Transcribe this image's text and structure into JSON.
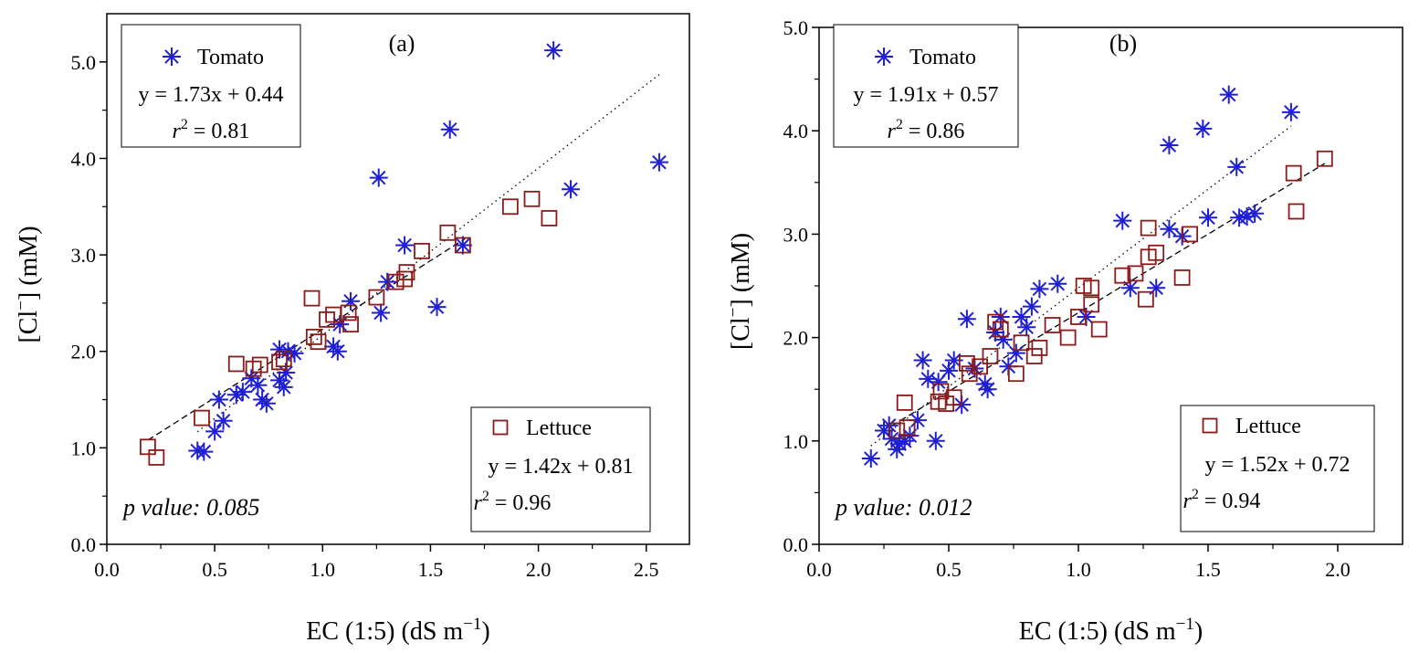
{
  "chart_data": [
    {
      "type": "scatter",
      "panel_label": "(a)",
      "xlabel": "EC (1:5) (dS m",
      "xlabel_sup": "−1",
      "xlabel_end": ")",
      "ylabel": "[Cl",
      "ylabel_sup": "−",
      "ylabel_end": "] (mM)",
      "xlim": [
        0,
        2.7
      ],
      "ylim": [
        0,
        5.5
      ],
      "xticks": [
        0.0,
        0.5,
        1.0,
        1.5,
        2.0,
        2.5
      ],
      "yticks": [
        0.0,
        1.0,
        2.0,
        3.0,
        4.0,
        5.0
      ],
      "p_value": "p value: 0.085",
      "series": [
        {
          "name": "Tomato",
          "marker": "asterisk",
          "color": "#1f1fd6",
          "equation": "y = 1.73x + 0.44",
          "r2_label": "r",
          "r2_value": " = 0.81",
          "fit": {
            "slope": 1.73,
            "intercept": 0.44,
            "x_range": [
              0.42,
              2.56
            ],
            "style": "dotted"
          },
          "points": [
            [
              0.42,
              0.97
            ],
            [
              0.45,
              0.96
            ],
            [
              0.5,
              1.17
            ],
            [
              0.52,
              1.5
            ],
            [
              0.54,
              1.28
            ],
            [
              0.6,
              1.55
            ],
            [
              0.63,
              1.58
            ],
            [
              0.67,
              1.72
            ],
            [
              0.7,
              1.65
            ],
            [
              0.72,
              1.5
            ],
            [
              0.74,
              1.46
            ],
            [
              0.8,
              2.02
            ],
            [
              0.8,
              1.7
            ],
            [
              0.82,
              1.63
            ],
            [
              0.83,
              1.78
            ],
            [
              0.84,
              2.0
            ],
            [
              0.87,
              1.98
            ],
            [
              1.05,
              2.05
            ],
            [
              1.07,
              2.0
            ],
            [
              1.08,
              2.28
            ],
            [
              1.13,
              2.52
            ],
            [
              1.26,
              3.8
            ],
            [
              1.27,
              2.4
            ],
            [
              1.3,
              2.72
            ],
            [
              1.38,
              3.1
            ],
            [
              1.53,
              2.46
            ],
            [
              1.59,
              4.3
            ],
            [
              1.65,
              3.1
            ],
            [
              2.07,
              5.12
            ],
            [
              2.15,
              3.68
            ],
            [
              2.56,
              3.96
            ]
          ]
        },
        {
          "name": "Lettuce",
          "marker": "square",
          "color": "#8b1a1a",
          "equation": "y = 1.42x + 0.81",
          "r2_label": "r",
          "r2_value": " = 0.96",
          "fit": {
            "slope": 1.42,
            "intercept": 0.81,
            "x_range": [
              0.19,
              1.66
            ],
            "style": "dashed"
          },
          "points": [
            [
              0.19,
              1.01
            ],
            [
              0.23,
              0.9
            ],
            [
              0.44,
              1.31
            ],
            [
              0.6,
              1.87
            ],
            [
              0.68,
              1.82
            ],
            [
              0.71,
              1.86
            ],
            [
              0.8,
              1.89
            ],
            [
              0.82,
              1.92
            ],
            [
              0.95,
              2.55
            ],
            [
              0.96,
              2.15
            ],
            [
              0.98,
              2.1
            ],
            [
              1.02,
              2.33
            ],
            [
              1.05,
              2.38
            ],
            [
              1.12,
              2.4
            ],
            [
              1.13,
              2.28
            ],
            [
              1.25,
              2.56
            ],
            [
              1.34,
              2.72
            ],
            [
              1.38,
              2.75
            ],
            [
              1.39,
              2.82
            ],
            [
              1.46,
              3.04
            ],
            [
              1.58,
              3.23
            ],
            [
              1.65,
              3.1
            ],
            [
              1.87,
              3.5
            ],
            [
              1.97,
              3.58
            ],
            [
              2.05,
              3.38
            ]
          ]
        }
      ]
    },
    {
      "type": "scatter",
      "panel_label": "(b)",
      "xlabel": "EC (1:5) (dS m",
      "xlabel_sup": "−1",
      "xlabel_end": ")",
      "ylabel": "[Cl",
      "ylabel_sup": "−",
      "ylabel_end": "] (mM)",
      "xlim": [
        0,
        2.25
      ],
      "ylim": [
        0,
        5.0
      ],
      "xticks": [
        0.0,
        0.5,
        1.0,
        1.5,
        2.0
      ],
      "yticks": [
        0.0,
        1.0,
        2.0,
        3.0,
        4.0,
        5.0
      ],
      "p_value": "p value: 0.012",
      "series": [
        {
          "name": "Tomato",
          "marker": "asterisk",
          "color": "#1f1fd6",
          "equation": "y = 1.91x + 0.57",
          "r2_label": "r",
          "r2_value": " = 0.86",
          "fit": {
            "slope": 1.91,
            "intercept": 0.57,
            "x_range": [
              0.2,
              1.82
            ],
            "style": "dotted"
          },
          "points": [
            [
              0.2,
              0.83
            ],
            [
              0.25,
              1.1
            ],
            [
              0.27,
              1.15
            ],
            [
              0.28,
              1.02
            ],
            [
              0.3,
              0.92
            ],
            [
              0.31,
              0.97
            ],
            [
              0.33,
              1.0
            ],
            [
              0.35,
              1.05
            ],
            [
              0.38,
              1.2
            ],
            [
              0.4,
              1.78
            ],
            [
              0.42,
              1.6
            ],
            [
              0.45,
              1.0
            ],
            [
              0.46,
              1.57
            ],
            [
              0.5,
              1.68
            ],
            [
              0.52,
              1.78
            ],
            [
              0.55,
              1.35
            ],
            [
              0.57,
              2.18
            ],
            [
              0.6,
              1.7
            ],
            [
              0.64,
              1.55
            ],
            [
              0.65,
              1.5
            ],
            [
              0.68,
              2.05
            ],
            [
              0.7,
              2.2
            ],
            [
              0.71,
              1.98
            ],
            [
              0.73,
              1.72
            ],
            [
              0.76,
              1.85
            ],
            [
              0.78,
              2.2
            ],
            [
              0.8,
              2.1
            ],
            [
              0.82,
              2.3
            ],
            [
              0.85,
              2.47
            ],
            [
              0.92,
              2.52
            ],
            [
              1.03,
              2.2
            ],
            [
              1.17,
              3.13
            ],
            [
              1.2,
              2.48
            ],
            [
              1.3,
              2.48
            ],
            [
              1.35,
              3.05
            ],
            [
              1.35,
              3.86
            ],
            [
              1.4,
              2.98
            ],
            [
              1.48,
              4.02
            ],
            [
              1.5,
              3.16
            ],
            [
              1.58,
              4.35
            ],
            [
              1.61,
              3.65
            ],
            [
              1.62,
              3.16
            ],
            [
              1.65,
              3.17
            ],
            [
              1.68,
              3.2
            ],
            [
              1.82,
              4.18
            ]
          ]
        },
        {
          "name": "Lettuce",
          "marker": "square",
          "color": "#8b1a1a",
          "equation": "y = 1.52x + 0.72",
          "r2_label": "r",
          "r2_value": " = 0.94",
          "fit": {
            "slope": 1.52,
            "intercept": 0.72,
            "x_range": [
              0.28,
              1.95
            ],
            "style": "dashed"
          },
          "points": [
            [
              0.3,
              1.1
            ],
            [
              0.33,
              1.37
            ],
            [
              0.34,
              1.13
            ],
            [
              0.46,
              1.38
            ],
            [
              0.47,
              1.48
            ],
            [
              0.49,
              1.36
            ],
            [
              0.52,
              1.42
            ],
            [
              0.57,
              1.75
            ],
            [
              0.58,
              1.65
            ],
            [
              0.62,
              1.72
            ],
            [
              0.66,
              1.82
            ],
            [
              0.68,
              2.15
            ],
            [
              0.7,
              2.08
            ],
            [
              0.76,
              1.65
            ],
            [
              0.78,
              1.95
            ],
            [
              0.83,
              1.82
            ],
            [
              0.85,
              1.9
            ],
            [
              0.9,
              2.12
            ],
            [
              0.96,
              2.0
            ],
            [
              1.0,
              2.2
            ],
            [
              1.02,
              2.5
            ],
            [
              1.05,
              2.48
            ],
            [
              1.05,
              2.32
            ],
            [
              1.08,
              2.08
            ],
            [
              1.17,
              2.6
            ],
            [
              1.22,
              2.62
            ],
            [
              1.26,
              2.37
            ],
            [
              1.27,
              3.06
            ],
            [
              1.27,
              2.78
            ],
            [
              1.3,
              2.82
            ],
            [
              1.43,
              3.0
            ],
            [
              1.4,
              2.58
            ],
            [
              1.83,
              3.59
            ],
            [
              1.84,
              3.22
            ],
            [
              1.95,
              3.73
            ]
          ]
        }
      ]
    }
  ]
}
